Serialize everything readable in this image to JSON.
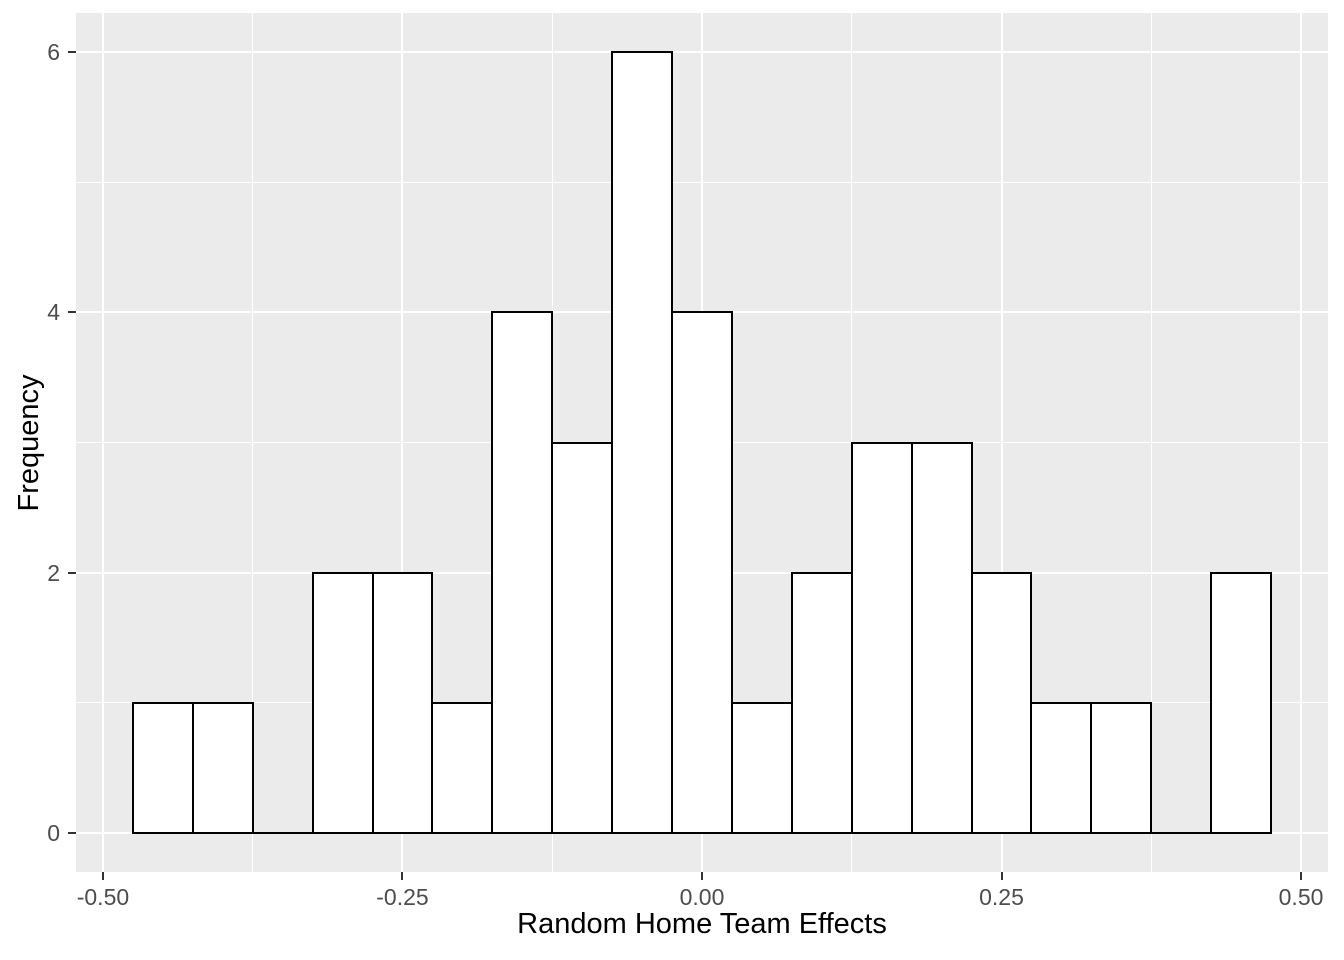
{
  "figure": {
    "kind": "ggplot-histogram",
    "background": "#FFFFFF"
  },
  "chart_data": {
    "type": "bar",
    "title": "",
    "xlabel": "Random Home Team Effects",
    "ylabel": "Frequency",
    "x_tick_values": [
      -0.5,
      -0.25,
      0,
      0.25,
      0.5
    ],
    "x_tick_labels": [
      "-0.50",
      "-0.25",
      "0.00",
      "0.25",
      "0.50"
    ],
    "x_minor_gridlines": [
      -0.375,
      -0.125,
      0.125,
      0.375
    ],
    "y_tick_values": [
      0,
      2,
      4,
      6
    ],
    "y_tick_labels": [
      "0",
      "2",
      "4",
      "6"
    ],
    "y_minor_gridlines": [
      1,
      3,
      5
    ],
    "xlim": [
      -0.5225,
      0.5225
    ],
    "ylim": [
      -0.3,
      6.3
    ],
    "bin_width": 0.05,
    "bins": {
      "centers": [
        -0.45,
        -0.4,
        -0.35,
        -0.3,
        -0.25,
        -0.2,
        -0.15,
        -0.1,
        -0.05,
        0.0,
        0.05,
        0.1,
        0.15,
        0.2,
        0.25,
        0.3,
        0.35,
        0.4,
        0.45
      ],
      "counts": [
        1,
        1,
        0,
        2,
        2,
        1,
        4,
        3,
        6,
        4,
        1,
        2,
        3,
        3,
        2,
        1,
        1,
        0,
        2
      ]
    },
    "style": {
      "panel_bg": "#EBEBEB",
      "grid_color": "#FFFFFF",
      "bar_fill": "#FFFFFF",
      "bar_stroke": "#000000",
      "tick_mark_color": "#333333",
      "tick_label_color": "#4D4D4D",
      "axis_title_color": "#000000",
      "legend": "none",
      "grid": "major+minor"
    }
  }
}
